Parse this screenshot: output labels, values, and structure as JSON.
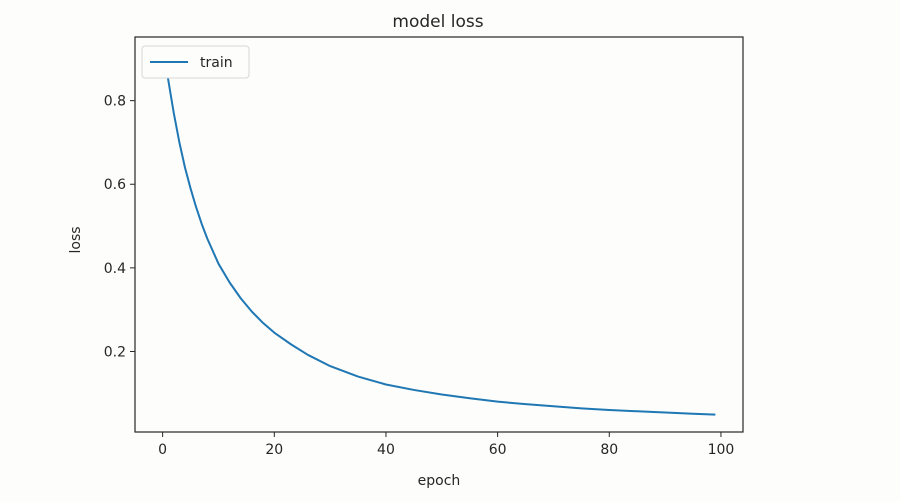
{
  "chart_data": {
    "type": "line",
    "title": "model loss",
    "xlabel": "epoch",
    "ylabel": "loss",
    "xlim": [
      -4.95,
      103.95
    ],
    "ylim": [
      0.0074,
      0.9522
    ],
    "x_ticks": [
      0,
      20,
      40,
      60,
      80,
      100
    ],
    "y_ticks": [
      0.2,
      0.4,
      0.6,
      0.8
    ],
    "x_tick_labels": [
      "0",
      "20",
      "40",
      "60",
      "80",
      "100"
    ],
    "y_tick_labels": [
      "0.2",
      "0.4",
      "0.6",
      "0.8"
    ],
    "grid": false,
    "legend": "upper left",
    "colors": {
      "series": "#1f77b4",
      "axes": "#262626",
      "background": "#fdfdfb"
    },
    "series": [
      {
        "name": "train",
        "x": [
          0,
          1,
          2,
          3,
          4,
          5,
          6,
          7,
          8,
          9,
          10,
          12,
          14,
          16,
          18,
          20,
          23,
          26,
          30,
          35,
          40,
          45,
          50,
          55,
          60,
          65,
          70,
          75,
          80,
          85,
          90,
          95,
          99
        ],
        "y": [
          0.93,
          0.85,
          0.77,
          0.7,
          0.64,
          0.59,
          0.545,
          0.505,
          0.47,
          0.44,
          0.41,
          0.365,
          0.327,
          0.295,
          0.268,
          0.245,
          0.217,
          0.192,
          0.165,
          0.14,
          0.121,
          0.108,
          0.097,
          0.088,
          0.08,
          0.074,
          0.069,
          0.064,
          0.06,
          0.057,
          0.054,
          0.051,
          0.049
        ]
      }
    ]
  }
}
